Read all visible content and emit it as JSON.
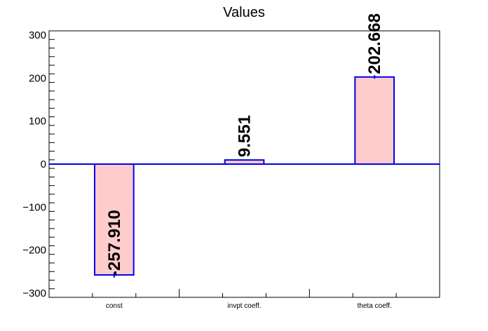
{
  "chart_data": {
    "type": "bar",
    "title": "Values",
    "categories": [
      "const",
      "invpt coeff.",
      "theta coeff."
    ],
    "values": [
      -257.91,
      9.551,
      202.668
    ],
    "value_labels": [
      "-257.910",
      "9.551",
      "202.668"
    ],
    "errors": [
      6,
      1,
      4
    ],
    "ylim": [
      -310,
      310
    ],
    "yticks": [
      -300,
      -200,
      -100,
      0,
      100,
      200,
      300
    ],
    "ytick_labels": [
      "−300",
      "−200",
      "−100",
      "0",
      "100",
      "200",
      "300"
    ],
    "grid": false,
    "colors": {
      "bar_fill": "#ffcccc",
      "bar_edge": "#0000ee",
      "error_bar": "#0000ee",
      "axis": "#000000"
    }
  }
}
